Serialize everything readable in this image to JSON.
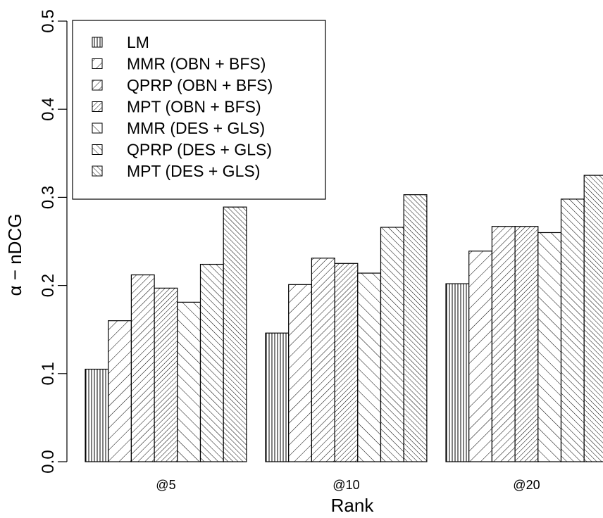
{
  "chart_data": {
    "type": "bar",
    "title": "",
    "xlabel": "Rank",
    "ylabel": "α − nDCG",
    "ylim": [
      0,
      0.5
    ],
    "yticks": [
      "0.0",
      "0.1",
      "0.2",
      "0.3",
      "0.4",
      "0.5"
    ],
    "categories": [
      "@5",
      "@10",
      "@20"
    ],
    "legend_position": "top-left",
    "grid": false,
    "series": [
      {
        "name": "LM",
        "values": [
          0.105,
          0.146,
          0.202
        ],
        "pattern": "vertical"
      },
      {
        "name": "MMR (OBN + BFS)",
        "values": [
          0.16,
          0.201,
          0.239
        ],
        "pattern": "diag-down-sparse"
      },
      {
        "name": "QPRP (OBN + BFS)",
        "values": [
          0.212,
          0.231,
          0.267
        ],
        "pattern": "diag-down"
      },
      {
        "name": "MPT (OBN + BFS)",
        "values": [
          0.197,
          0.225,
          0.267
        ],
        "pattern": "diag-down-dense"
      },
      {
        "name": "MMR (DES + GLS)",
        "values": [
          0.181,
          0.214,
          0.26
        ],
        "pattern": "diag-up-sparse"
      },
      {
        "name": "QPRP (DES + GLS)",
        "values": [
          0.224,
          0.266,
          0.298
        ],
        "pattern": "diag-up"
      },
      {
        "name": "MPT (DES + GLS)",
        "values": [
          0.289,
          0.303,
          0.325
        ],
        "pattern": "diag-up-dense"
      }
    ]
  }
}
